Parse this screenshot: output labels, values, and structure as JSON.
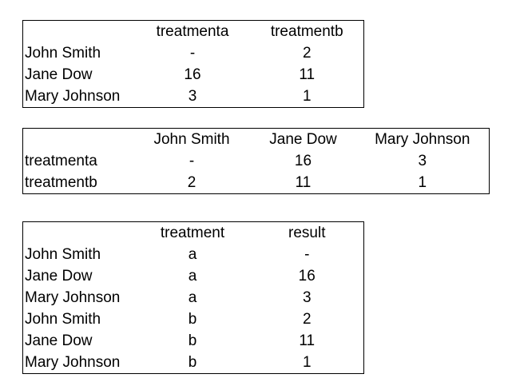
{
  "table1": {
    "columns": [
      "",
      "treatmenta",
      "treatmentb"
    ],
    "rows": [
      [
        "John Smith",
        "-",
        "2"
      ],
      [
        "Jane Dow",
        "16",
        "11"
      ],
      [
        "Mary Johnson",
        "3",
        "1"
      ]
    ]
  },
  "table2": {
    "columns": [
      "",
      "John Smith",
      "Jane Dow",
      "Mary Johnson"
    ],
    "rows": [
      [
        "treatmenta",
        "-",
        "16",
        "3"
      ],
      [
        "treatmentb",
        "2",
        "11",
        "1"
      ]
    ]
  },
  "table3": {
    "columns": [
      "",
      "treatment",
      "result"
    ],
    "rows": [
      [
        "John Smith",
        "a",
        "-"
      ],
      [
        "Jane Dow",
        "a",
        "16"
      ],
      [
        "Mary Johnson",
        "a",
        "3"
      ],
      [
        "John Smith",
        "b",
        "2"
      ],
      [
        "Jane Dow",
        "b",
        "11"
      ],
      [
        "Mary Johnson",
        "b",
        "1"
      ]
    ]
  }
}
